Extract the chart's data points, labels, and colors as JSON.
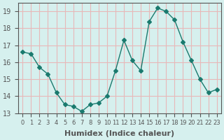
{
  "x": [
    0,
    1,
    2,
    3,
    4,
    5,
    6,
    7,
    8,
    9,
    10,
    11,
    12,
    13,
    14,
    15,
    16,
    17,
    18,
    19,
    20,
    21,
    22,
    23
  ],
  "y": [
    16.6,
    16.5,
    15.7,
    15.3,
    14.2,
    13.5,
    13.4,
    13.1,
    13.5,
    13.6,
    14.0,
    15.5,
    17.3,
    16.1,
    15.5,
    18.4,
    19.2,
    19.0,
    18.5,
    17.2,
    16.1,
    15.0,
    14.2,
    14.4
  ],
  "line_color": "#1a7a6e",
  "marker": "D",
  "marker_size": 3,
  "bg_color": "#d6f0ee",
  "grid_color": "#e8b8b8",
  "axis_color": "#555555",
  "xlabel": "Humidex (Indice chaleur)",
  "ylim": [
    13.0,
    19.5
  ],
  "xlim": [
    -0.5,
    23.5
  ],
  "yticks": [
    13,
    14,
    15,
    16,
    17,
    18,
    19
  ],
  "xtick_labels": [
    "0",
    "1",
    "2",
    "3",
    "4",
    "5",
    "6",
    "7",
    "8",
    "9",
    "10",
    "11",
    "12",
    "13",
    "14",
    "15",
    "16",
    "17",
    "18",
    "19",
    "20",
    "21",
    "22",
    "23"
  ],
  "label_fontsize": 8,
  "tick_fontsize": 7
}
